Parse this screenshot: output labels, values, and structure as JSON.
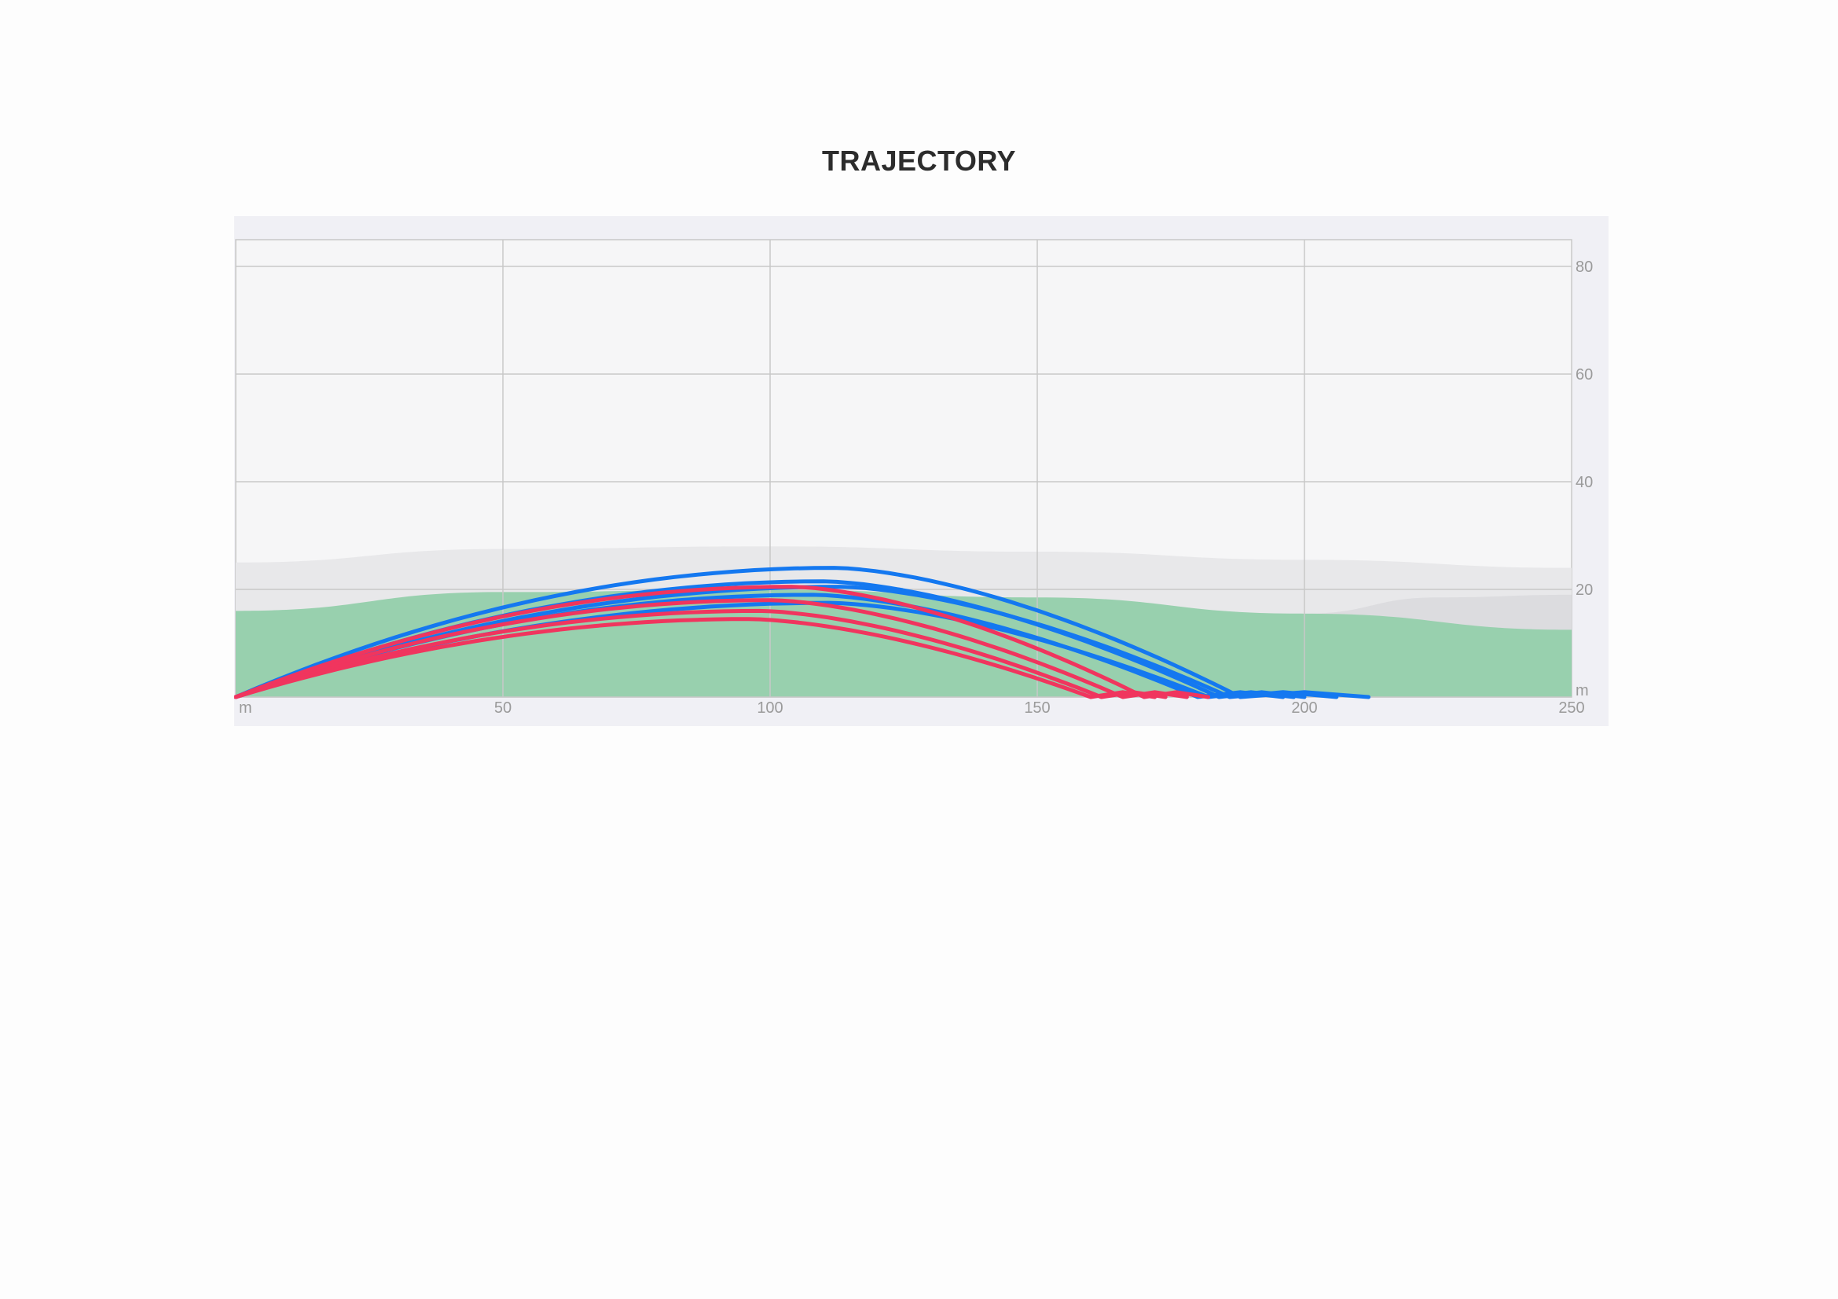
{
  "title": "TRAJECTORY",
  "chart_data": {
    "type": "line",
    "title": "TRAJECTORY",
    "x_unit": "m",
    "y_unit": "m",
    "xlim": [
      0,
      250
    ],
    "ylim": [
      0,
      85
    ],
    "x_ticks": [
      "50",
      "100",
      "150",
      "200",
      "250"
    ],
    "y_ticks": [
      "20",
      "40",
      "60",
      "80"
    ],
    "grid": true,
    "colors": {
      "blue": "#1478f0",
      "red": "#f0355e",
      "fairway": "#98d0ae",
      "band_light": "#e8e8ea",
      "band_dark": "#dcdcdf",
      "plot_bg": "#f6f6f7",
      "panel_bg": "#f0f0f5",
      "grid": "#c8c8c8"
    },
    "fairway_profile": [
      [
        0,
        16
      ],
      [
        50,
        19.5
      ],
      [
        100,
        20
      ],
      [
        150,
        18.5
      ],
      [
        200,
        15.5
      ],
      [
        250,
        12.5
      ]
    ],
    "light_band_profile": [
      [
        0,
        25
      ],
      [
        50,
        27.5
      ],
      [
        100,
        28
      ],
      [
        150,
        27
      ],
      [
        200,
        25.5
      ],
      [
        250,
        24
      ]
    ],
    "dark_band_profile": [
      [
        200,
        15.5
      ],
      [
        225,
        18.5
      ],
      [
        250,
        19
      ]
    ],
    "series": [
      {
        "color": "blue",
        "apex_x": 112,
        "apex_y": 24.0,
        "carry": 188,
        "rest": 212
      },
      {
        "color": "blue",
        "apex_x": 110,
        "apex_y": 21.5,
        "carry": 184,
        "rest": 200
      },
      {
        "color": "blue",
        "apex_x": 108,
        "apex_y": 19.0,
        "carry": 180,
        "rest": 196
      },
      {
        "color": "blue",
        "apex_x": 113,
        "apex_y": 20.5,
        "carry": 186,
        "rest": 206
      },
      {
        "color": "blue",
        "apex_x": 111,
        "apex_y": 17.5,
        "carry": 182,
        "rest": 198
      },
      {
        "color": "red",
        "apex_x": 104,
        "apex_y": 20.5,
        "carry": 170,
        "rest": 182
      },
      {
        "color": "red",
        "apex_x": 100,
        "apex_y": 18.0,
        "carry": 166,
        "rest": 178
      },
      {
        "color": "red",
        "apex_x": 98,
        "apex_y": 16.0,
        "carry": 162,
        "rest": 174
      },
      {
        "color": "red",
        "apex_x": 96,
        "apex_y": 14.5,
        "carry": 160,
        "rest": 172
      }
    ]
  }
}
